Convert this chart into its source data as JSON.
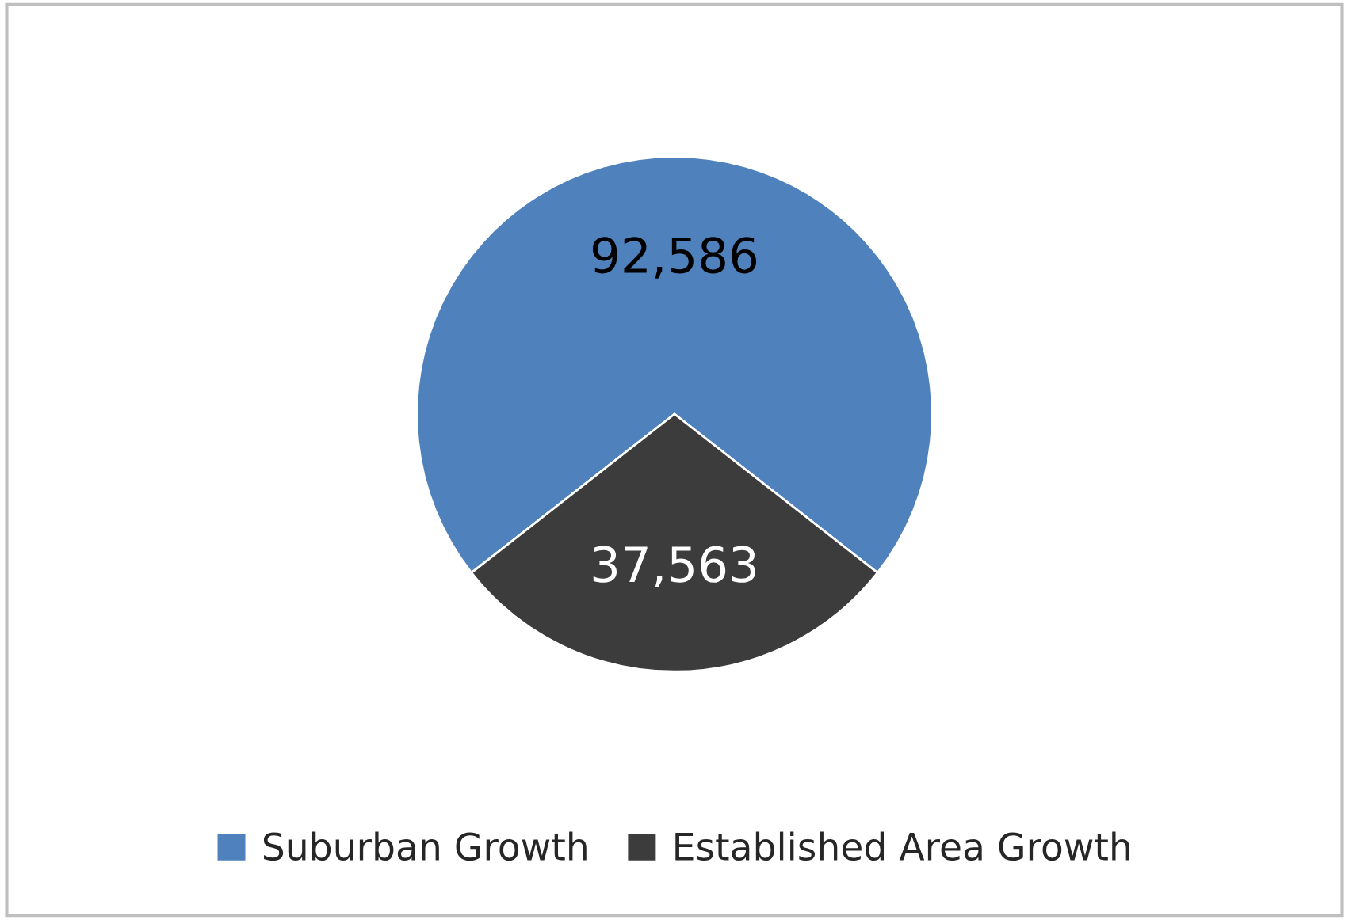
{
  "chart_data": {
    "type": "pie",
    "categories": [
      "Suburban Growth",
      "Established Area Growth"
    ],
    "values": [
      92586,
      37563
    ],
    "colors": [
      "#4f81bd",
      "#3c3c3c"
    ],
    "value_labels": [
      "92,586",
      "37,563"
    ],
    "legend": "bottom"
  }
}
